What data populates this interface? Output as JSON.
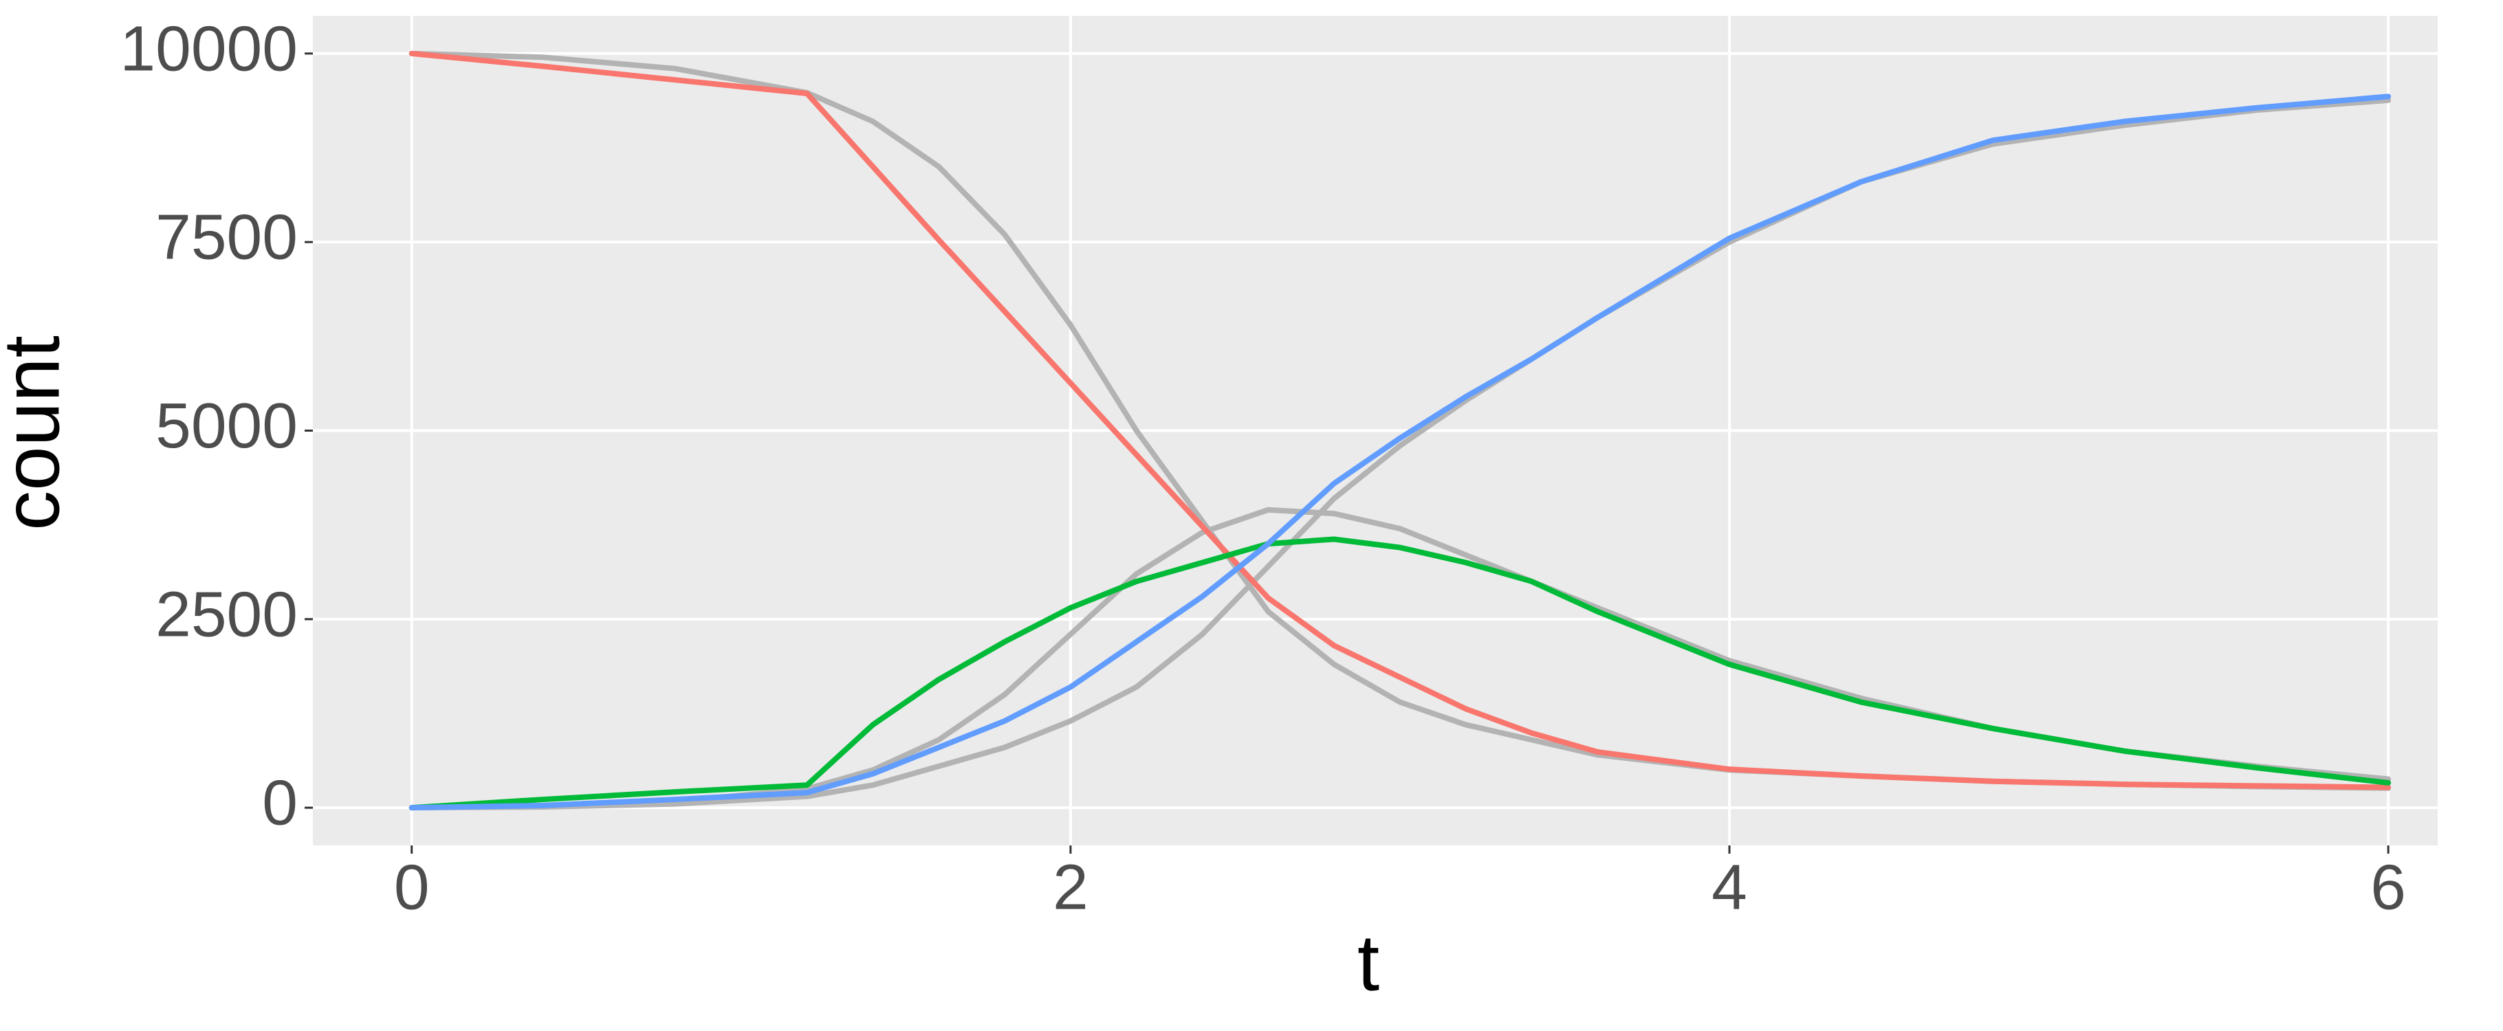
{
  "chart_data": {
    "type": "line",
    "x_label": "t",
    "y_label": "count",
    "x": [
      0,
      0.4,
      0.8,
      1.2,
      1.4,
      1.6,
      1.8,
      2.0,
      2.2,
      2.4,
      2.6,
      2.8,
      3.0,
      3.2,
      3.4,
      3.6,
      4.0,
      4.4,
      4.8,
      5.2,
      5.6,
      6.0
    ],
    "series": [
      {
        "color": "#b3b3b3",
        "values": [
          10000,
          9950,
          9800,
          9480,
          9100,
          8500,
          7600,
          6400,
          5000,
          3800,
          2600,
          1900,
          1400,
          1100,
          900,
          700,
          500,
          420,
          350,
          310,
          280,
          260
        ]
      },
      {
        "color": "#b3b3b3",
        "values": [
          0,
          30,
          80,
          250,
          500,
          900,
          1500,
          2300,
          3100,
          3650,
          3950,
          3900,
          3700,
          3350,
          3000,
          2650,
          1950,
          1450,
          1050,
          750,
          550,
          380
        ]
      },
      {
        "color": "#b3b3b3",
        "values": [
          0,
          10,
          50,
          150,
          300,
          550,
          800,
          1150,
          1600,
          2300,
          3200,
          4100,
          4800,
          5400,
          5950,
          6500,
          7500,
          8300,
          8800,
          9050,
          9250,
          9380
        ]
      },
      {
        "color": "#f8766d",
        "values": [
          10000,
          9830,
          9650,
          9470,
          8500,
          7530,
          6580,
          5630,
          4680,
          3730,
          2780,
          2150,
          1730,
          1310,
          990,
          740,
          510,
          420,
          350,
          310,
          290,
          270
        ]
      },
      {
        "color": "#00ba38",
        "values": [
          0,
          110,
          210,
          300,
          1100,
          1700,
          2200,
          2650,
          3000,
          3250,
          3500,
          3560,
          3450,
          3250,
          3000,
          2600,
          1900,
          1400,
          1050,
          750,
          530,
          330
        ]
      },
      {
        "color": "#619cff",
        "values": [
          0,
          30,
          110,
          200,
          450,
          800,
          1150,
          1600,
          2200,
          2800,
          3500,
          4300,
          4900,
          5450,
          5950,
          6500,
          7550,
          8300,
          8850,
          9100,
          9280,
          9430
        ]
      }
    ],
    "xlim": [
      -0.3,
      6.15
    ],
    "xticks": [
      0,
      2,
      4,
      6
    ],
    "ylim": [
      -500,
      10500
    ],
    "yticks": [
      0,
      2500,
      5000,
      7500,
      10000
    ],
    "grid": true
  }
}
